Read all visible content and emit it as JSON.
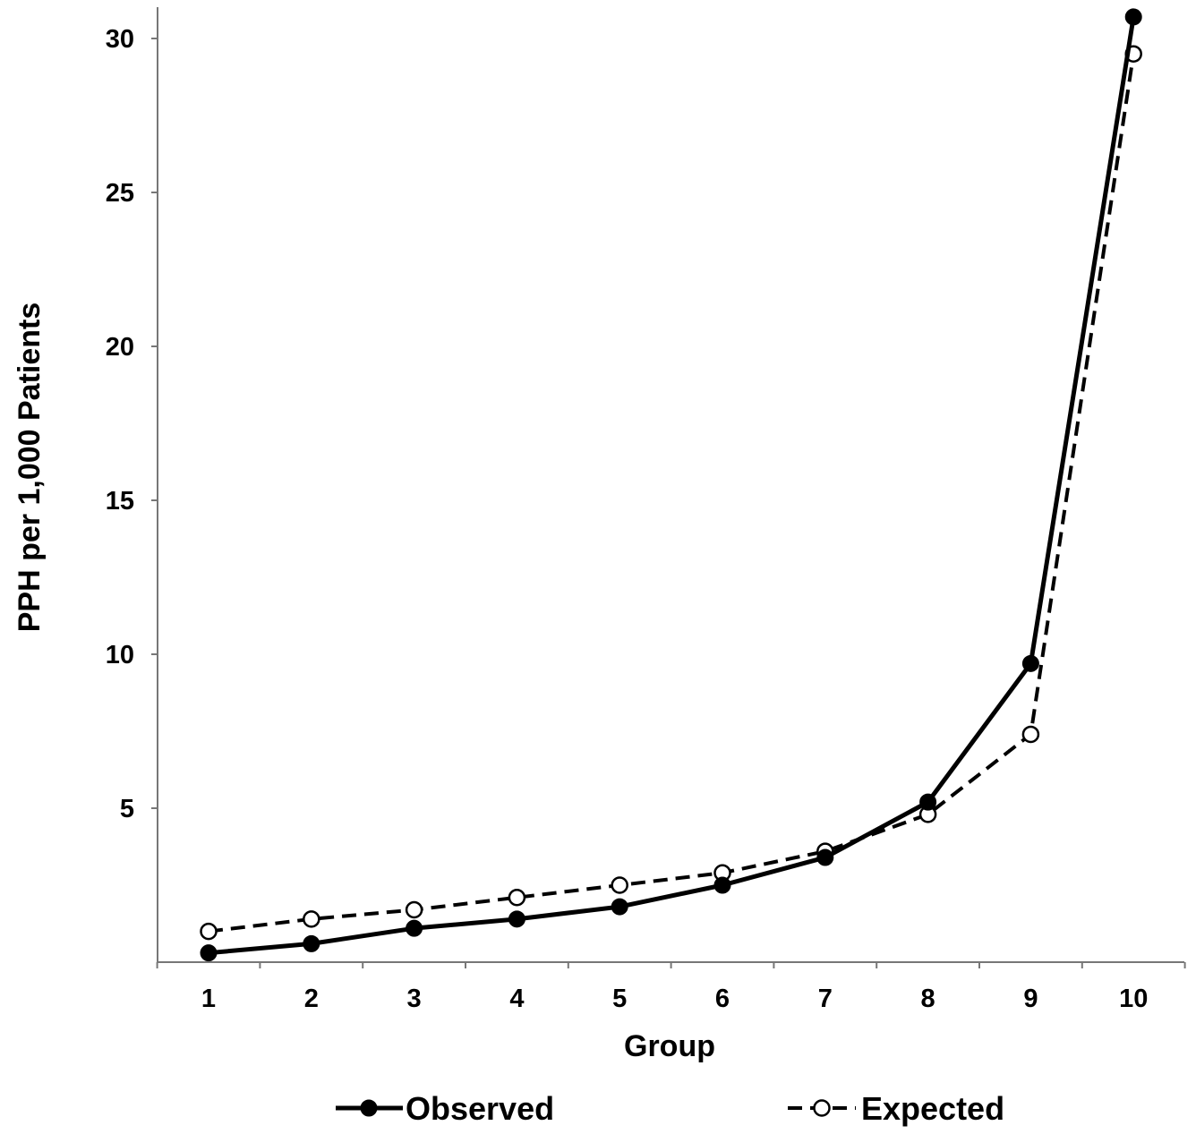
{
  "chart_data": {
    "type": "line",
    "title": "",
    "xlabel": "Group",
    "ylabel": "PPH per 1,000 Patients",
    "categories": [
      "1",
      "2",
      "3",
      "4",
      "5",
      "6",
      "7",
      "8",
      "9",
      "10"
    ],
    "x": [
      1,
      2,
      3,
      4,
      5,
      6,
      7,
      8,
      9,
      10
    ],
    "xlim": [
      0.5,
      10.5
    ],
    "ylim": [
      0,
      31
    ],
    "yticks": [
      5,
      10,
      15,
      20,
      25,
      30
    ],
    "ytick_labels": [
      "5",
      "10",
      "15",
      "20",
      "25",
      "30"
    ],
    "grid": false,
    "legend_position": "bottom",
    "series": [
      {
        "name": "Observed",
        "values": [
          0.3,
          0.6,
          1.1,
          1.4,
          1.8,
          2.5,
          3.4,
          5.2,
          9.7,
          30.7
        ],
        "line_style": "solid",
        "marker": "filled-circle",
        "color": "#000000"
      },
      {
        "name": "Expected",
        "values": [
          1.0,
          1.4,
          1.7,
          2.1,
          2.5,
          2.9,
          3.6,
          4.8,
          7.4,
          29.5
        ],
        "line_style": "dashed",
        "marker": "open-circle",
        "color": "#000000"
      }
    ]
  }
}
